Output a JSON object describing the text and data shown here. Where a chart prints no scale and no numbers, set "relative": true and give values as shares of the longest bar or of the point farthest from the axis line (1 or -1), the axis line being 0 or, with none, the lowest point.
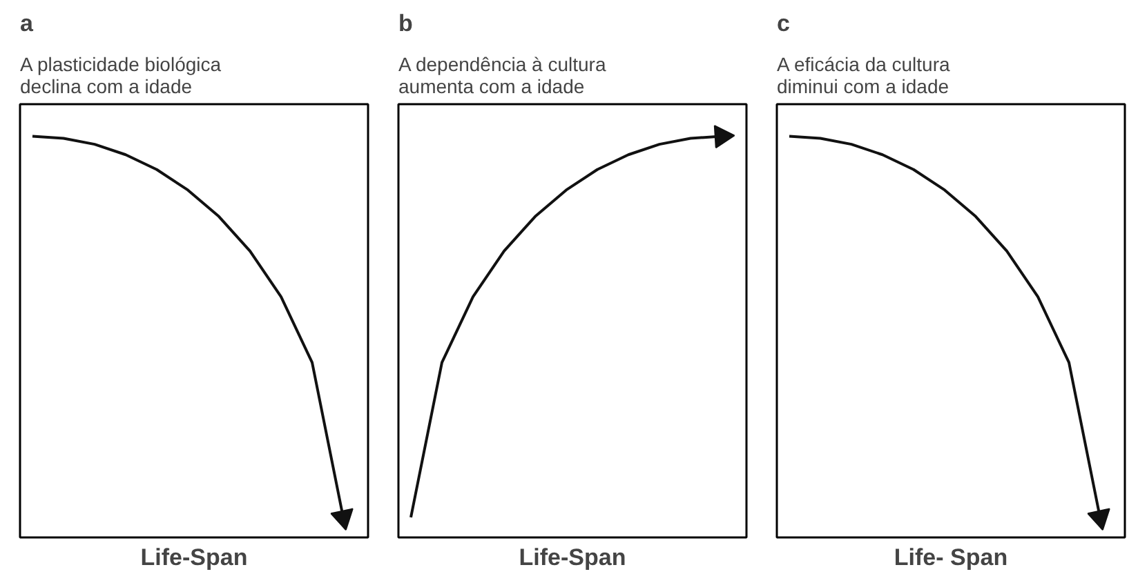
{
  "chart_data": [
    {
      "type": "line",
      "title": "a",
      "subtitle": "A plasticidade biológica\ndeclina com a idade",
      "xlabel": "Life-Span",
      "relative": true,
      "categories": [
        null,
        null,
        null,
        null,
        null,
        null,
        null,
        null,
        null,
        null,
        null
      ],
      "series": [
        {
          "color": "#111111",
          "values": [
            1,
            0.995,
            0.98,
            0.954,
            0.917,
            0.866,
            0.8,
            0.714,
            0.6,
            0.436,
            0.05
          ]
        }
      ]
    },
    {
      "type": "line",
      "title": "b",
      "subtitle": "A dependência à cultura\naumenta com a idade",
      "xlabel": "Life-Span",
      "relative": true,
      "categories": [
        null,
        null,
        null,
        null,
        null,
        null,
        null,
        null,
        null,
        null,
        null
      ],
      "series": [
        {
          "color": "#111111",
          "values": [
            0.05,
            0.436,
            0.6,
            0.714,
            0.8,
            0.866,
            0.917,
            0.954,
            0.98,
            0.995,
            1
          ]
        }
      ]
    },
    {
      "type": "line",
      "title": "c",
      "subtitle": "A eficácia da cultura\ndiminui com a idade",
      "xlabel": "Life- Span",
      "relative": true,
      "categories": [
        null,
        null,
        null,
        null,
        null,
        null,
        null,
        null,
        null,
        null,
        null
      ],
      "series": [
        {
          "color": "#111111",
          "values": [
            1,
            0.995,
            0.98,
            0.954,
            0.917,
            0.866,
            0.8,
            0.714,
            0.6,
            0.436,
            0.05
          ]
        }
      ]
    }
  ]
}
